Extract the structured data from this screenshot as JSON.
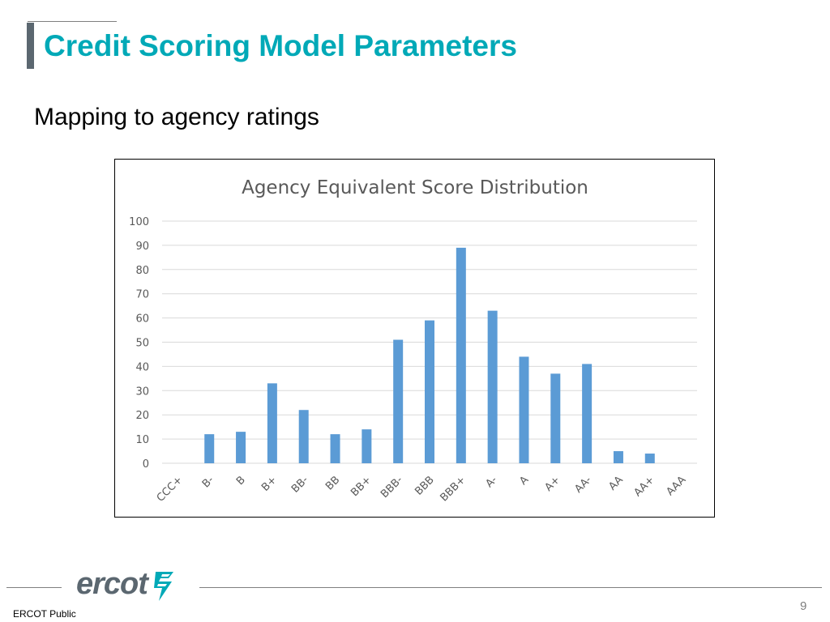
{
  "slide": {
    "title": "Credit Scoring Model Parameters",
    "subtitle": "Mapping to agency ratings",
    "footer_label": "ERCOT Public",
    "page_number": "9",
    "logo_text": "ercot",
    "accent_color": "#00a9b7",
    "logo_color": "#5b6770",
    "logo_mark_color": "#00a9b7"
  },
  "chart_data": {
    "type": "bar",
    "title": "Agency Equivalent Score Distribution",
    "xlabel": "",
    "ylabel": "",
    "categories": [
      "CCC+",
      "B-",
      "B",
      "B+",
      "BB-",
      "BB",
      "BB+",
      "BBB-",
      "BBB",
      "BBB+",
      "A-",
      "A",
      "A+",
      "AA-",
      "AA",
      "AA+",
      "AAA"
    ],
    "values": [
      0,
      12,
      13,
      33,
      22,
      12,
      14,
      51,
      59,
      89,
      63,
      44,
      37,
      41,
      5,
      4,
      0
    ],
    "ylim": [
      0,
      100
    ],
    "yticks": [
      0,
      10,
      20,
      30,
      40,
      50,
      60,
      70,
      80,
      90,
      100
    ],
    "grid": true,
    "legend": "none",
    "bar_color": "#5b9bd5",
    "grid_color": "#d9d9d9",
    "text_color": "#595959"
  }
}
